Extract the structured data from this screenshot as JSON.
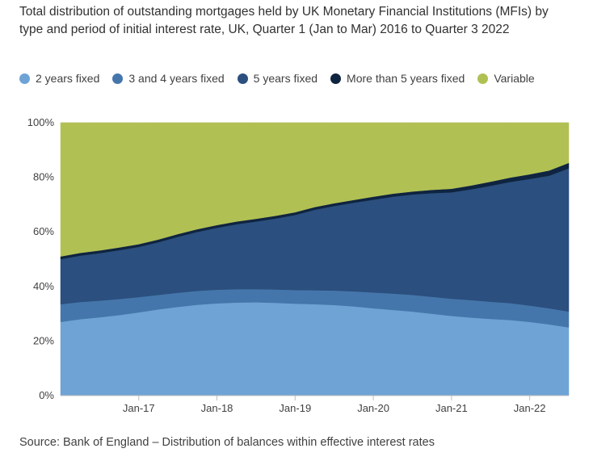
{
  "title": "Total distribution of outstanding mortgages held by UK Monetary Financial Institutions (MFIs) by type and period of initial interest rate, UK, Quarter 1 (Jan to Mar) 2016 to Quarter 3 2022",
  "source": "Source: Bank of England – Distribution of balances within effective interest rates",
  "chart_data": {
    "type": "area",
    "stacked": true,
    "title": "Total distribution of outstanding mortgages held by UK Monetary Financial Institutions (MFIs) by type and period of initial interest rate, UK, Quarter 1 (Jan to Mar) 2016 to Quarter 3 2022",
    "xlabel": "",
    "ylabel": "",
    "ylim": [
      0,
      100
    ],
    "y_ticks": [
      "0%",
      "20%",
      "40%",
      "60%",
      "80%",
      "100%"
    ],
    "x_ticks": [
      "Jan-17",
      "Jan-18",
      "Jan-19",
      "Jan-20",
      "Jan-21",
      "Jan-22"
    ],
    "x_tick_index": [
      4,
      8,
      12,
      16,
      20,
      24
    ],
    "grid": true,
    "legend_position": "top-left",
    "x": [
      "2016 Q1",
      "2016 Q2",
      "2016 Q3",
      "2016 Q4",
      "2017 Q1",
      "2017 Q2",
      "2017 Q3",
      "2017 Q4",
      "2018 Q1",
      "2018 Q2",
      "2018 Q3",
      "2018 Q4",
      "2019 Q1",
      "2019 Q2",
      "2019 Q3",
      "2019 Q4",
      "2020 Q1",
      "2020 Q2",
      "2020 Q3",
      "2020 Q4",
      "2021 Q1",
      "2021 Q2",
      "2021 Q3",
      "2021 Q4",
      "2022 Q1",
      "2022 Q2",
      "2022 Q3"
    ],
    "series": [
      {
        "name": "2 years fixed",
        "color": "#6fa3d6",
        "values": [
          27.0,
          28.0,
          28.7,
          29.5,
          30.5,
          31.6,
          32.5,
          33.3,
          33.8,
          34.1,
          34.2,
          34.0,
          33.7,
          33.5,
          33.2,
          32.7,
          32.0,
          31.4,
          30.8,
          30.0,
          29.2,
          28.6,
          28.1,
          27.7,
          27.0,
          26.1,
          25.0
        ]
      },
      {
        "name": "3 and 4 years fixed",
        "color": "#4576ab",
        "values": [
          6.5,
          6.3,
          6.1,
          5.9,
          5.6,
          5.3,
          5.2,
          5.1,
          5.0,
          4.9,
          4.8,
          4.9,
          5.0,
          5.1,
          5.3,
          5.5,
          5.8,
          6.0,
          6.1,
          6.2,
          6.3,
          6.4,
          6.3,
          6.2,
          6.0,
          5.9,
          5.8
        ]
      },
      {
        "name": "5 years fixed",
        "color": "#2b4f7e",
        "values": [
          16.5,
          17.0,
          17.4,
          17.9,
          18.4,
          19.3,
          20.5,
          21.6,
          22.7,
          23.8,
          24.8,
          26.0,
          27.5,
          29.5,
          31.0,
          32.5,
          34.0,
          35.5,
          36.8,
          38.0,
          39.0,
          40.6,
          42.5,
          44.4,
          46.4,
          48.6,
          52.5
        ]
      },
      {
        "name": "More than 5 years fixed",
        "color": "#0f2440",
        "values": [
          1.0,
          1.0,
          1.0,
          1.0,
          1.0,
          1.0,
          1.0,
          1.0,
          1.0,
          1.0,
          1.0,
          1.0,
          1.0,
          1.0,
          1.0,
          1.0,
          1.1,
          1.1,
          1.1,
          1.2,
          1.3,
          1.4,
          1.5,
          1.6,
          1.7,
          1.9,
          2.0
        ]
      },
      {
        "name": "Variable",
        "color": "#b1c053",
        "values": [
          49.0,
          47.7,
          46.8,
          45.7,
          44.5,
          42.8,
          40.8,
          39.0,
          37.5,
          36.2,
          35.2,
          34.1,
          32.8,
          30.9,
          29.5,
          28.3,
          27.1,
          26.0,
          25.2,
          24.6,
          24.2,
          23.0,
          21.6,
          20.1,
          18.9,
          17.5,
          14.7
        ]
      }
    ]
  }
}
